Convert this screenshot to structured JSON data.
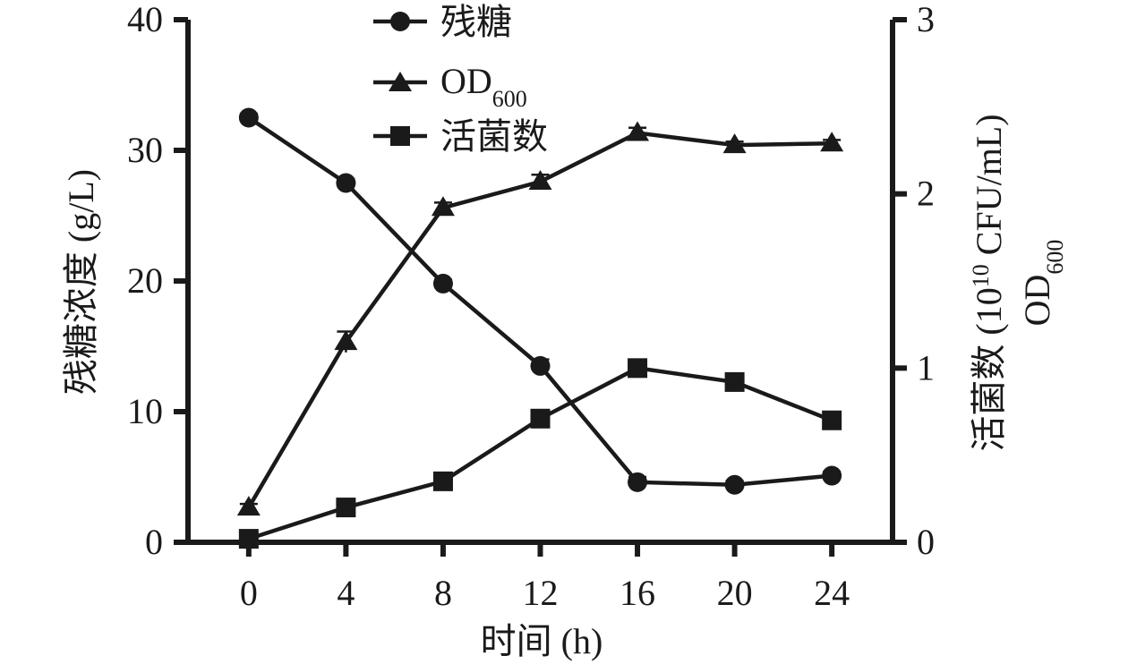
{
  "chart_data": {
    "type": "line",
    "x": [
      0,
      4,
      8,
      12,
      16,
      20,
      24
    ],
    "x_ticks": [
      "0",
      "4",
      "8",
      "12",
      "16",
      "20",
      "24"
    ],
    "xlabel": "时间 (h)",
    "xlim": [
      -2.5,
      26.5
    ],
    "y_left": {
      "label": "残糖浓度 (g/L)",
      "lim": [
        0,
        40
      ],
      "ticks": [
        "0",
        "10",
        "20",
        "30",
        "40"
      ]
    },
    "y_right": {
      "label_line1_prefix": "活菌数 (10",
      "label_line1_sup": "10",
      "label_line1_suffix": " CFU/mL)",
      "label_line2_main": "OD",
      "label_line2_sub": "600",
      "lim": [
        0,
        3
      ],
      "ticks": [
        "0",
        "1",
        "2",
        "3"
      ]
    },
    "grid": false,
    "legend_position": "top-left",
    "series": [
      {
        "name": "残糖",
        "axis": "left",
        "marker": "circle",
        "values": [
          32.5,
          27.5,
          19.8,
          13.5,
          4.6,
          4.4,
          5.1
        ],
        "errors": [
          0.3,
          0.3,
          0.3,
          0.5,
          0.4,
          0.3,
          0.3
        ]
      },
      {
        "name": "OD600",
        "name_main": "OD",
        "name_sub": "600",
        "axis": "right",
        "marker": "triangle",
        "values": [
          0.2,
          1.15,
          1.92,
          2.07,
          2.35,
          2.28,
          2.29
        ],
        "errors": [
          0.02,
          0.06,
          0.03,
          0.04,
          0.03,
          0.02,
          0.02
        ]
      },
      {
        "name": "活菌数",
        "axis": "right",
        "marker": "square",
        "values": [
          0.02,
          0.2,
          0.35,
          0.71,
          1.0,
          0.92,
          0.7
        ],
        "errors": [
          0.01,
          0.01,
          0.01,
          0.02,
          0.02,
          0.02,
          0.02
        ]
      }
    ]
  }
}
